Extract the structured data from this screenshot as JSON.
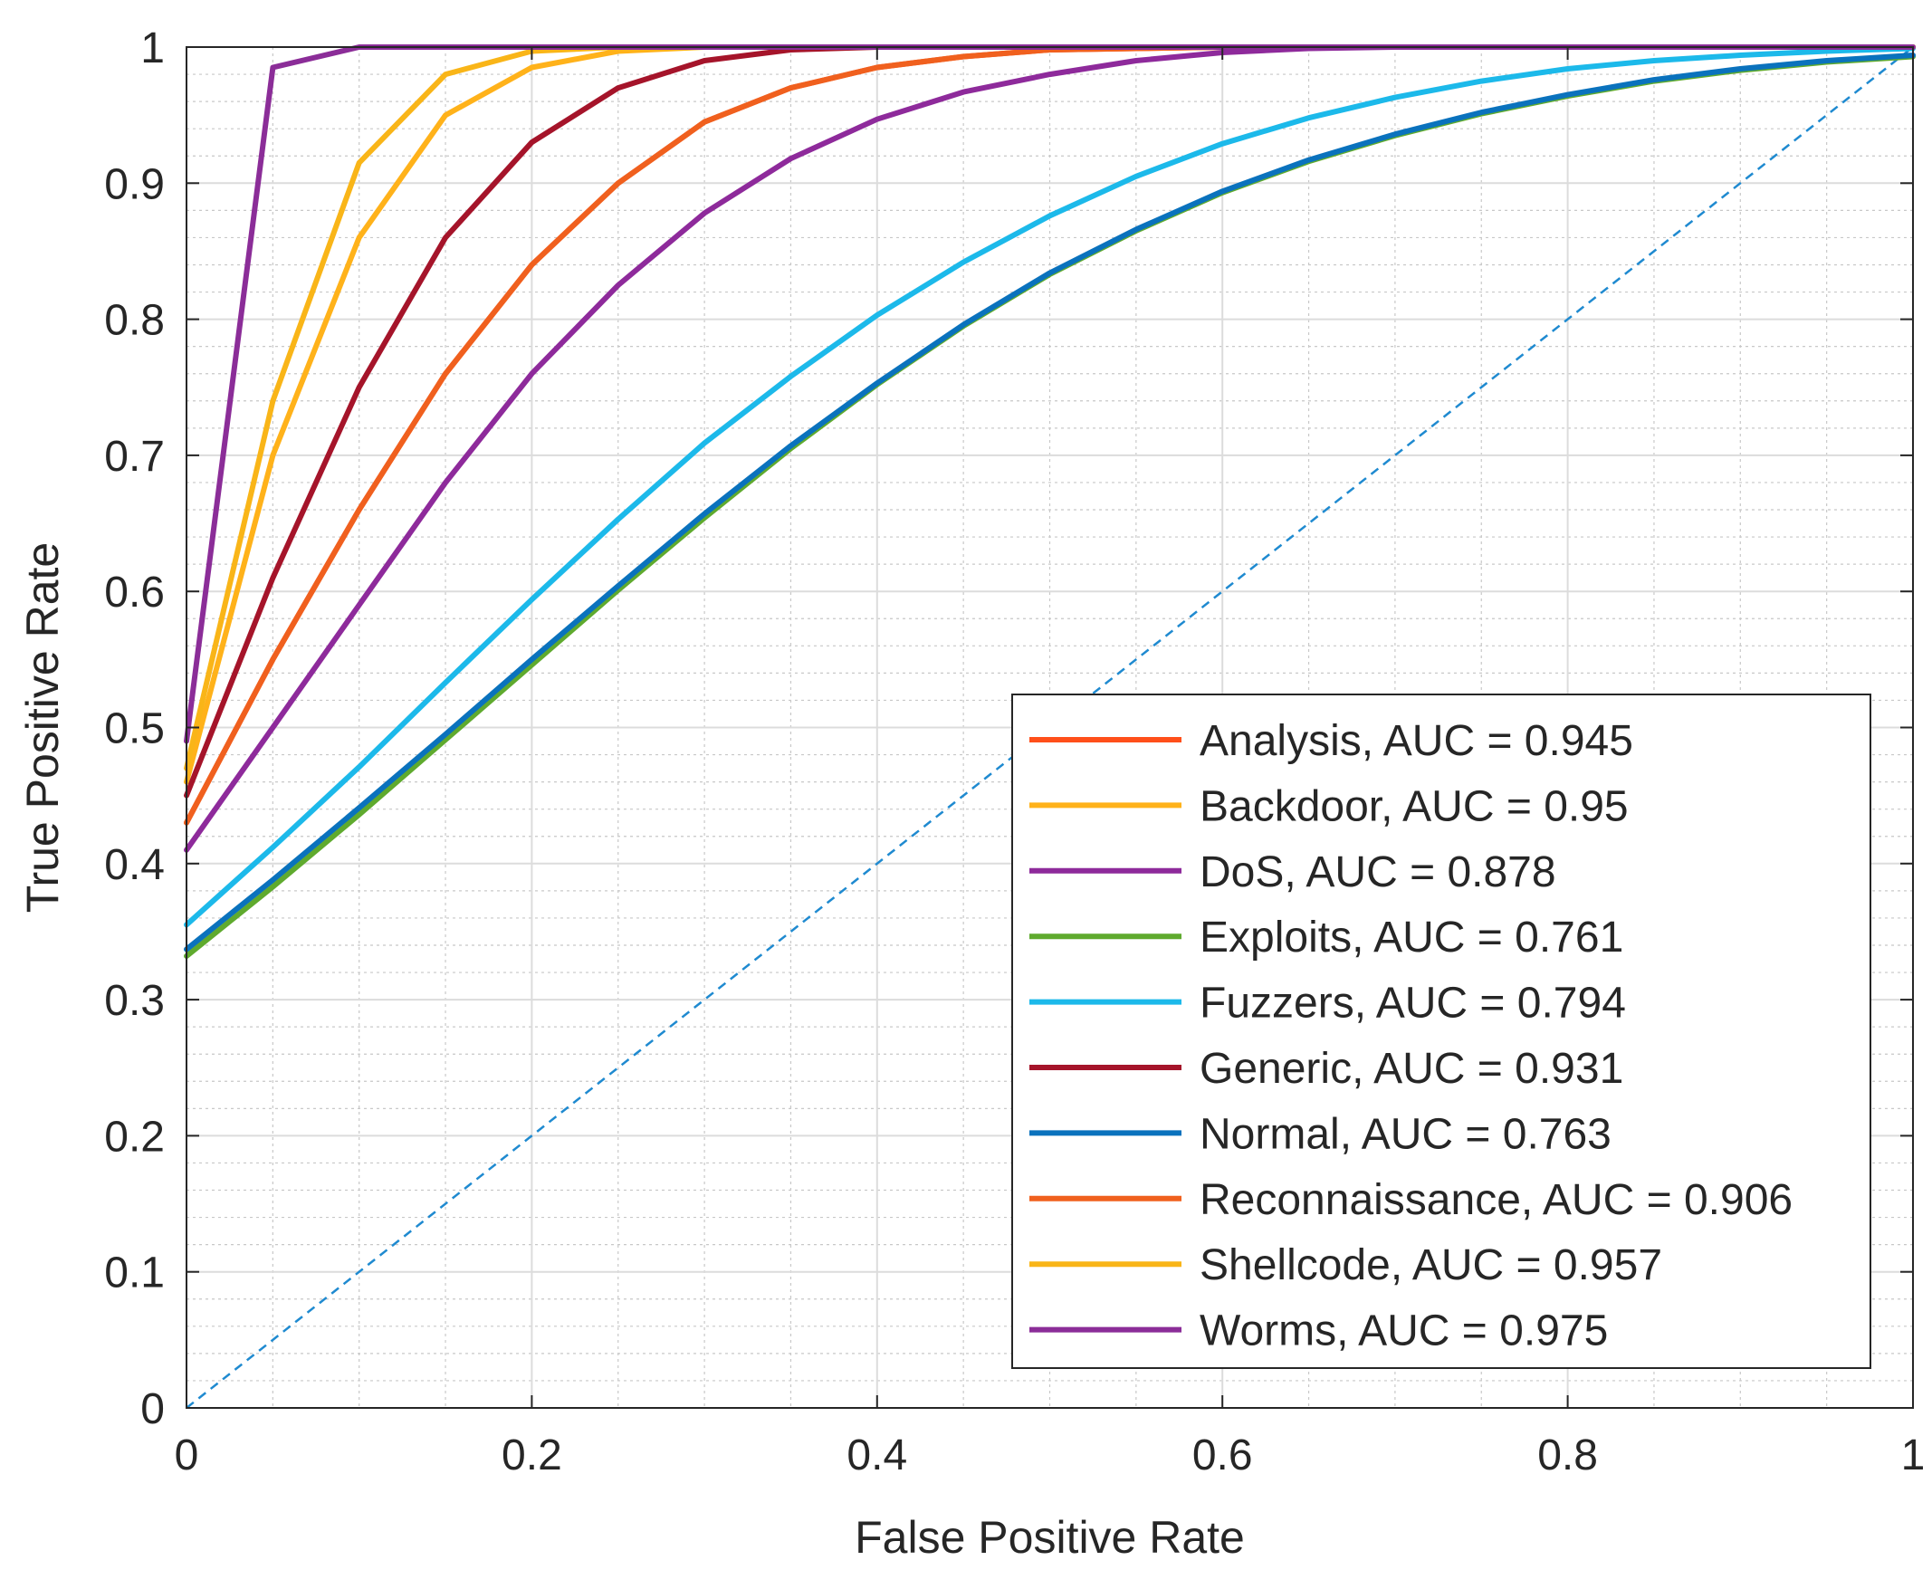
{
  "chart_data": {
    "type": "line",
    "xlabel": "False Positive Rate",
    "ylabel": "True Positive Rate",
    "xlim": [
      0,
      1
    ],
    "ylim": [
      0,
      1
    ],
    "xticks": [
      0,
      0.2,
      0.4,
      0.6,
      0.8,
      1
    ],
    "yticks": [
      0,
      0.1,
      0.2,
      0.3,
      0.4,
      0.5,
      0.6,
      0.7,
      0.8,
      0.9,
      1
    ],
    "xtick_labels": [
      "0",
      "0.2",
      "0.4",
      "0.6",
      "0.8",
      "1"
    ],
    "ytick_labels": [
      "0",
      "0.1",
      "0.2",
      "0.3",
      "0.4",
      "0.5",
      "0.6",
      "0.7",
      "0.8",
      "0.9",
      "1"
    ],
    "grid": "major and minor",
    "legend_position": "bottom-right",
    "series": [
      {
        "name": "Analysis, AUC = 0.945",
        "color": "#FF4F1A",
        "x": [
          0,
          0.05,
          0.1,
          0.15,
          0.2,
          0.25,
          0.3,
          0.35,
          0.4,
          0.45,
          0.5,
          0.6,
          0.8,
          1
        ],
        "y": [
          0.43,
          0.55,
          0.66,
          0.76,
          0.84,
          0.9,
          0.945,
          0.97,
          0.985,
          0.993,
          0.998,
          1.0,
          1.0,
          1.0
        ]
      },
      {
        "name": "Backdoor, AUC = 0.95",
        "color": "#FFB21A",
        "x": [
          0,
          0.05,
          0.1,
          0.15,
          0.2,
          0.25,
          0.3,
          0.4,
          0.6,
          0.8,
          1
        ],
        "y": [
          0.46,
          0.7,
          0.86,
          0.95,
          0.985,
          0.997,
          1.0,
          1.0,
          1.0,
          1.0,
          1.0
        ]
      },
      {
        "name": "DoS, AUC = 0.878",
        "color": "#8E2A9B",
        "x": [
          0,
          0.05,
          0.1,
          0.15,
          0.2,
          0.25,
          0.3,
          0.35,
          0.4,
          0.45,
          0.5,
          0.55,
          0.6,
          0.65,
          0.7,
          0.8,
          1
        ],
        "y": [
          0.41,
          0.5,
          0.59,
          0.68,
          0.76,
          0.825,
          0.878,
          0.918,
          0.947,
          0.967,
          0.98,
          0.99,
          0.996,
          0.999,
          1.0,
          1.0,
          1.0
        ]
      },
      {
        "name": "Exploits, AUC = 0.761",
        "color": "#5FAA2E",
        "x": [
          0,
          0.05,
          0.1,
          0.15,
          0.2,
          0.25,
          0.3,
          0.35,
          0.4,
          0.45,
          0.5,
          0.55,
          0.6,
          0.65,
          0.7,
          0.75,
          0.8,
          0.85,
          0.9,
          0.95,
          1
        ],
        "y": [
          0.332,
          0.383,
          0.436,
          0.491,
          0.546,
          0.601,
          0.654,
          0.705,
          0.752,
          0.795,
          0.833,
          0.865,
          0.893,
          0.916,
          0.935,
          0.951,
          0.964,
          0.975,
          0.983,
          0.989,
          0.993
        ]
      },
      {
        "name": "Fuzzers, AUC = 0.794",
        "color": "#1CB9EA",
        "x": [
          0,
          0.05,
          0.1,
          0.15,
          0.2,
          0.25,
          0.3,
          0.35,
          0.4,
          0.45,
          0.5,
          0.55,
          0.6,
          0.65,
          0.7,
          0.75,
          0.8,
          0.85,
          0.9,
          0.95,
          1
        ],
        "y": [
          0.355,
          0.412,
          0.471,
          0.533,
          0.594,
          0.653,
          0.709,
          0.758,
          0.803,
          0.842,
          0.876,
          0.905,
          0.929,
          0.948,
          0.963,
          0.975,
          0.984,
          0.99,
          0.994,
          0.997,
          0.999
        ]
      },
      {
        "name": "Generic, AUC = 0.931",
        "color": "#A5142A",
        "x": [
          0,
          0.05,
          0.1,
          0.15,
          0.2,
          0.25,
          0.3,
          0.35,
          0.4,
          0.5,
          0.6,
          0.8,
          1
        ],
        "y": [
          0.45,
          0.61,
          0.75,
          0.86,
          0.93,
          0.97,
          0.99,
          0.998,
          1.0,
          1.0,
          1.0,
          1.0,
          1.0
        ]
      },
      {
        "name": "Normal, AUC = 0.763",
        "color": "#0A72BD",
        "x": [
          0,
          0.05,
          0.1,
          0.15,
          0.2,
          0.25,
          0.3,
          0.35,
          0.4,
          0.45,
          0.5,
          0.55,
          0.6,
          0.65,
          0.7,
          0.75,
          0.8,
          0.85,
          0.9,
          0.95,
          1
        ],
        "y": [
          0.337,
          0.388,
          0.441,
          0.495,
          0.55,
          0.604,
          0.657,
          0.707,
          0.753,
          0.796,
          0.834,
          0.866,
          0.894,
          0.917,
          0.936,
          0.952,
          0.965,
          0.976,
          0.984,
          0.99,
          0.994
        ]
      },
      {
        "name": "Reconnaissance, AUC = 0.906",
        "color": "#F0601E",
        "x": [
          0,
          0.05,
          0.1,
          0.15,
          0.2,
          0.25,
          0.3,
          0.35,
          0.4,
          0.45,
          0.5,
          0.6,
          0.8,
          1
        ],
        "y": [
          0.43,
          0.55,
          0.66,
          0.76,
          0.84,
          0.9,
          0.945,
          0.97,
          0.985,
          0.993,
          0.998,
          1.0,
          1.0,
          1.0
        ]
      },
      {
        "name": "Shellcode, AUC = 0.957",
        "color": "#F9B518",
        "x": [
          0,
          0.05,
          0.1,
          0.15,
          0.2,
          0.25,
          0.3,
          0.4,
          0.6,
          0.8,
          1
        ],
        "y": [
          0.47,
          0.74,
          0.915,
          0.98,
          0.997,
          1.0,
          1.0,
          1.0,
          1.0,
          1.0,
          1.0
        ]
      },
      {
        "name": "Worms, AUC = 0.975",
        "color": "#8B2D98",
        "x": [
          0,
          0.05,
          0.1,
          0.2,
          0.4,
          0.6,
          0.8,
          1
        ],
        "y": [
          0.49,
          0.985,
          1.0,
          1.0,
          1.0,
          1.0,
          1.0,
          1.0
        ]
      }
    ],
    "reference_line": {
      "x": [
        0,
        1
      ],
      "y": [
        0,
        1
      ],
      "color": "#1F8AD0",
      "style": "dashed"
    }
  }
}
